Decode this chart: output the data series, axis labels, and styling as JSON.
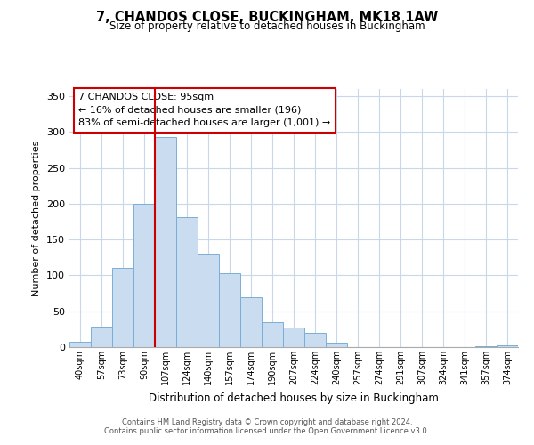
{
  "title": "7, CHANDOS CLOSE, BUCKINGHAM, MK18 1AW",
  "subtitle": "Size of property relative to detached houses in Buckingham",
  "xlabel": "Distribution of detached houses by size in Buckingham",
  "ylabel": "Number of detached properties",
  "bar_labels": [
    "40sqm",
    "57sqm",
    "73sqm",
    "90sqm",
    "107sqm",
    "124sqm",
    "140sqm",
    "157sqm",
    "174sqm",
    "190sqm",
    "207sqm",
    "224sqm",
    "240sqm",
    "257sqm",
    "274sqm",
    "291sqm",
    "307sqm",
    "324sqm",
    "341sqm",
    "357sqm",
    "374sqm"
  ],
  "bar_values": [
    7,
    29,
    111,
    200,
    293,
    181,
    130,
    103,
    70,
    35,
    27,
    20,
    6,
    0,
    0,
    0,
    0,
    0,
    0,
    1,
    2
  ],
  "bar_color": "#c9dcf0",
  "bar_edge_color": "#7aaed6",
  "vline_x": 3.5,
  "vline_color": "#cc0000",
  "ylim": [
    0,
    360
  ],
  "yticks": [
    0,
    50,
    100,
    150,
    200,
    250,
    300,
    350
  ],
  "annotation_title": "7 CHANDOS CLOSE: 95sqm",
  "annotation_line1": "← 16% of detached houses are smaller (196)",
  "annotation_line2": "83% of semi-detached houses are larger (1,001) →",
  "annotation_box_color": "#ffffff",
  "annotation_box_edge": "#cc0000",
  "footer1": "Contains HM Land Registry data © Crown copyright and database right 2024.",
  "footer2": "Contains public sector information licensed under the Open Government Licence v3.0.",
  "background_color": "#ffffff",
  "grid_color": "#c8d8e8"
}
